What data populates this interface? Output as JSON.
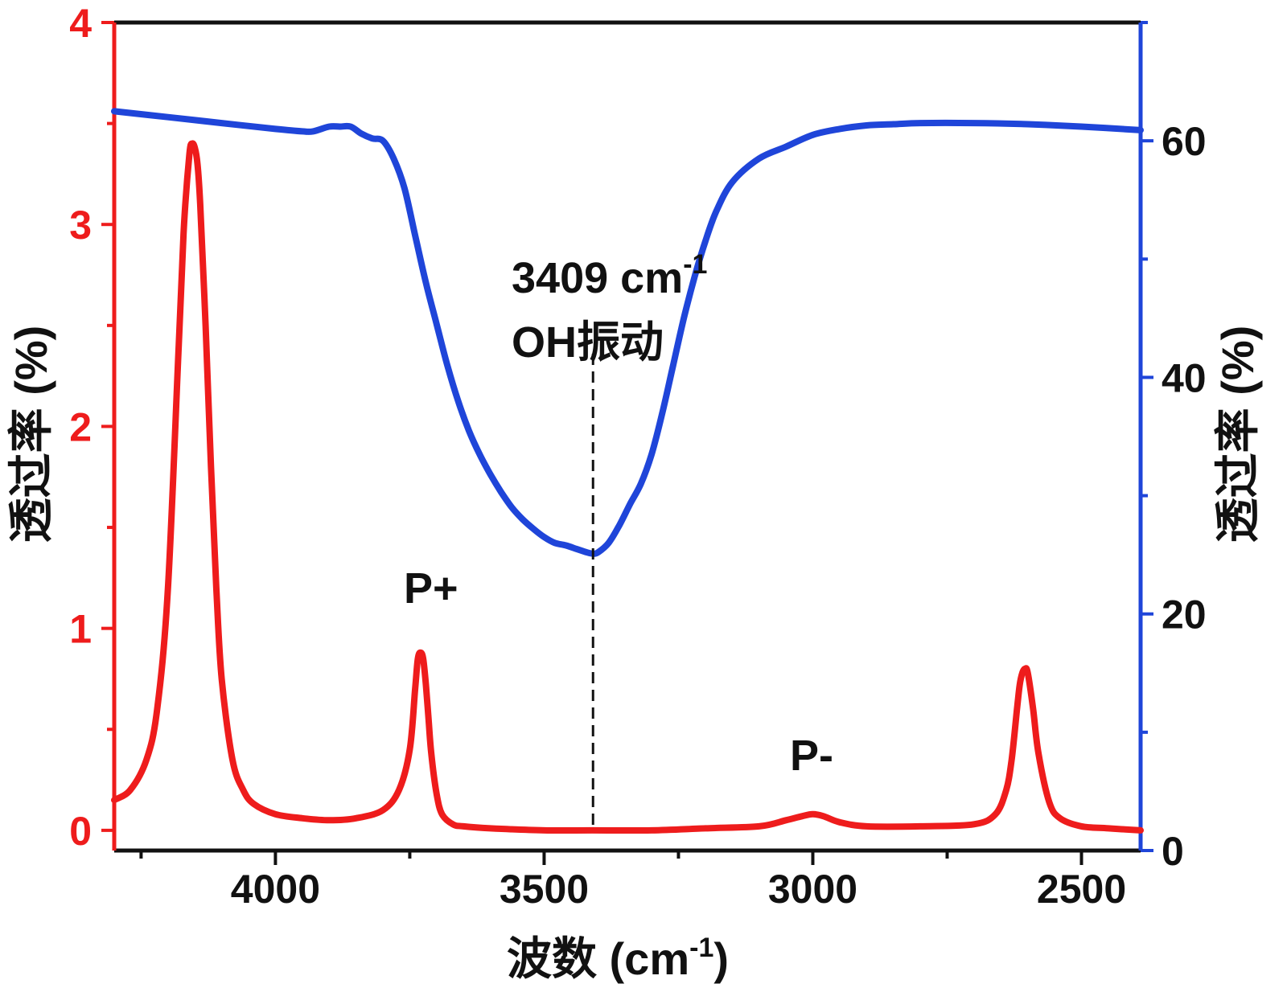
{
  "chart_data": {
    "type": "line",
    "title": "",
    "xlabel": "波数 (cm",
    "xlabel_sup": "-1",
    "xlabel_end": ")",
    "xlim": [
      4300,
      2390
    ],
    "x_ticks": [
      "4000",
      "3500",
      "3000",
      "2500"
    ],
    "x_tick_values": [
      4000,
      3500,
      3000,
      2500
    ],
    "x_minor_ticks": [
      4250,
      3750,
      3250,
      2750
    ],
    "y_left": {
      "label": "透过率 (%)",
      "range": [
        -0.1,
        4.0
      ],
      "ticks": [
        "0",
        "1",
        "2",
        "3",
        "4"
      ],
      "tick_values": [
        0,
        1,
        2,
        3,
        4
      ],
      "minor_ticks": [
        0.5,
        1.5,
        2.5,
        3.5
      ],
      "color": "#ee1c1c"
    },
    "y_right": {
      "label": "透过率 (%)",
      "range": [
        0,
        70
      ],
      "ticks": [
        "0",
        "20",
        "40",
        "60"
      ],
      "tick_values": [
        0,
        20,
        40,
        60
      ],
      "minor_ticks": [
        10,
        30,
        50,
        70
      ],
      "color": "#1f45d9"
    },
    "series": [
      {
        "name": "red",
        "axis": "left",
        "color": "#ee1c1c",
        "x": [
          4300,
          4270,
          4240,
          4220,
          4200,
          4180,
          4170,
          4160,
          4155,
          4150,
          4145,
          4140,
          4130,
          4120,
          4110,
          4100,
          4080,
          4060,
          4040,
          4000,
          3950,
          3900,
          3850,
          3800,
          3770,
          3750,
          3740,
          3735,
          3730,
          3725,
          3720,
          3715,
          3710,
          3700,
          3690,
          3670,
          3650,
          3600,
          3500,
          3410,
          3300,
          3200,
          3100,
          3050,
          3020,
          3000,
          2980,
          2950,
          2900,
          2800,
          2700,
          2660,
          2640,
          2630,
          2620,
          2615,
          2610,
          2605,
          2600,
          2590,
          2580,
          2560,
          2540,
          2500,
          2450,
          2390
        ],
        "y": [
          0.15,
          0.2,
          0.35,
          0.6,
          1.2,
          2.4,
          3.0,
          3.35,
          3.4,
          3.38,
          3.3,
          3.1,
          2.5,
          1.8,
          1.2,
          0.75,
          0.35,
          0.2,
          0.13,
          0.08,
          0.06,
          0.05,
          0.06,
          0.1,
          0.2,
          0.4,
          0.7,
          0.85,
          0.88,
          0.85,
          0.72,
          0.55,
          0.38,
          0.18,
          0.08,
          0.03,
          0.02,
          0.01,
          0.0,
          0.0,
          0.0,
          0.01,
          0.02,
          0.05,
          0.07,
          0.08,
          0.07,
          0.04,
          0.02,
          0.02,
          0.03,
          0.08,
          0.2,
          0.35,
          0.6,
          0.72,
          0.78,
          0.8,
          0.78,
          0.6,
          0.38,
          0.14,
          0.06,
          0.02,
          0.01,
          0.0
        ]
      },
      {
        "name": "blue",
        "axis": "right",
        "color": "#1f45d9",
        "x": [
          4300,
          4200,
          4100,
          4000,
          3950,
          3930,
          3900,
          3880,
          3860,
          3840,
          3820,
          3800,
          3780,
          3760,
          3740,
          3720,
          3700,
          3680,
          3660,
          3640,
          3620,
          3600,
          3580,
          3560,
          3540,
          3520,
          3500,
          3480,
          3460,
          3440,
          3420,
          3409,
          3400,
          3380,
          3360,
          3340,
          3320,
          3300,
          3280,
          3260,
          3240,
          3220,
          3200,
          3180,
          3150,
          3100,
          3050,
          3000,
          2950,
          2900,
          2850,
          2800,
          2700,
          2600,
          2500,
          2390
        ],
        "y": [
          62.5,
          62.0,
          61.5,
          61.0,
          60.8,
          60.8,
          61.2,
          61.2,
          61.2,
          60.6,
          60.2,
          60.0,
          58.5,
          56.0,
          52.0,
          48.0,
          44.5,
          41.0,
          38.0,
          35.5,
          33.5,
          31.8,
          30.3,
          29.0,
          28.0,
          27.2,
          26.5,
          26.0,
          25.8,
          25.5,
          25.2,
          25.1,
          25.2,
          26.0,
          27.5,
          29.3,
          31.0,
          33.5,
          37.0,
          41.0,
          45.0,
          48.5,
          51.5,
          54.0,
          56.5,
          58.5,
          59.5,
          60.5,
          61.0,
          61.3,
          61.4,
          61.5,
          61.5,
          61.4,
          61.2,
          60.9
        ]
      }
    ],
    "annotations": {
      "peak_wavenumber": "3409 cm",
      "peak_sup": "-1",
      "peak_mode": "OH振动",
      "p_plus": "P+",
      "p_minus": "P-",
      "dashed_line_x": 3409
    }
  }
}
